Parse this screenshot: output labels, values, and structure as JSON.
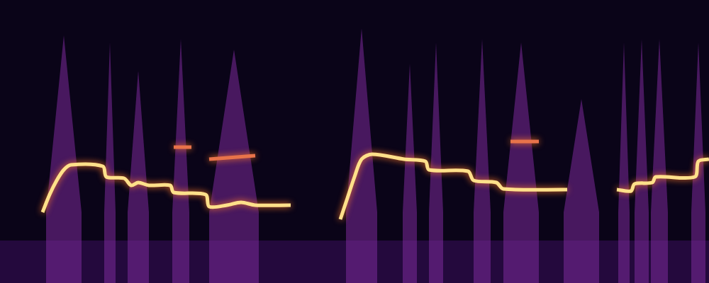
{
  "chart_data": {
    "type": "line",
    "xlim": [
      0,
      1000
    ],
    "ylim": [
      0,
      400
    ],
    "grid": false,
    "tick_labels": false,
    "series": [
      {
        "type": "area",
        "color": "#3a0f5c",
        "x": [
          0,
          1000
        ],
        "values": [
          60,
          60
        ]
      },
      {
        "type": "area",
        "color": "#7b2a9a",
        "x": [
          65,
          90,
          115,
          115,
          147,
          155,
          163,
          163,
          180,
          195,
          210,
          210,
          243,
          255,
          267,
          267,
          295,
          330,
          365,
          365,
          488,
          510,
          532,
          532,
          568,
          578,
          588,
          588,
          605,
          615,
          625,
          625,
          668,
          680,
          692,
          692,
          710,
          735,
          760,
          760,
          795,
          820,
          845,
          845,
          872,
          880,
          888,
          888,
          895,
          905,
          915,
          915,
          918,
          930,
          942,
          942,
          975,
          985,
          995
        ],
        "values": [
          100,
          350,
          100,
          null,
          100,
          340,
          100,
          null,
          100,
          300,
          100,
          null,
          100,
          345,
          100,
          null,
          100,
          330,
          100,
          null,
          100,
          360,
          100,
          null,
          100,
          310,
          100,
          null,
          100,
          340,
          100,
          null,
          100,
          345,
          100,
          null,
          100,
          340,
          100,
          null,
          100,
          260,
          100,
          null,
          100,
          340,
          100,
          null,
          100,
          345,
          100,
          null,
          100,
          345,
          100,
          null,
          100,
          340,
          100
        ]
      },
      {
        "type": "line",
        "color": "#e8734a",
        "x": [
          245,
          270,
          280,
          295,
          360,
          380,
          720,
          760
        ],
        "values": [
          192,
          192,
          null,
          175,
          180,
          null,
          200,
          200
        ]
      },
      {
        "type": "line",
        "color": "#ffe08a",
        "x": [
          60,
          70,
          80,
          90,
          100,
          145,
          150,
          175,
          185,
          195,
          210,
          240,
          245,
          290,
          295,
          320,
          340,
          360,
          410,
          430,
          480,
          490,
          500,
          510,
          525,
          570,
          600,
          605,
          660,
          668,
          700,
          710,
          800,
          830,
          870,
          890,
          895,
          920,
          925,
          980,
          985,
          1000
        ],
        "values": [
          100,
          125,
          145,
          160,
          167,
          165,
          150,
          148,
          138,
          142,
          138,
          138,
          128,
          125,
          108,
          110,
          114,
          110,
          110,
          null,
          90,
          120,
          150,
          175,
          182,
          175,
          172,
          160,
          158,
          145,
          142,
          133,
          132,
          null,
          132,
          130,
          140,
          142,
          150,
          150,
          172,
          175
        ]
      }
    ]
  }
}
